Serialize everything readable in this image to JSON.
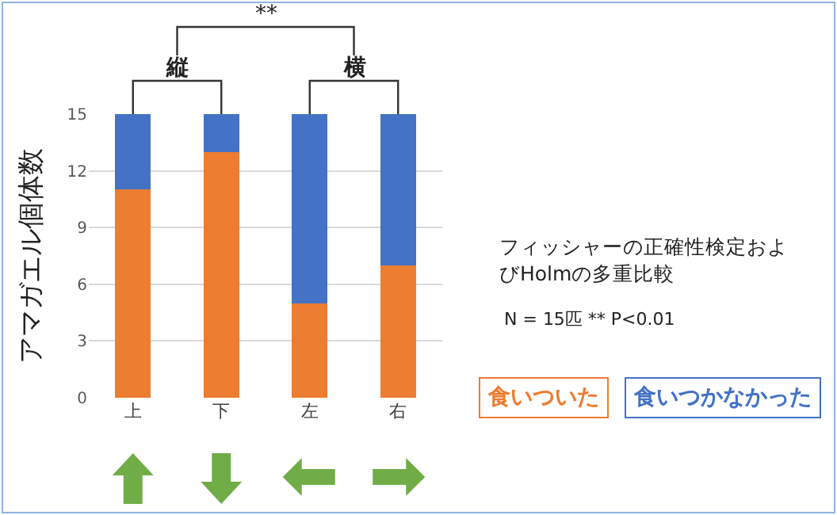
{
  "chart_data": {
    "type": "bar",
    "stacked": true,
    "categories": [
      "上",
      "下",
      "左",
      "右"
    ],
    "series": [
      {
        "name": "食いついた",
        "color": "#ed7d31",
        "values": [
          11,
          13,
          5,
          7
        ]
      },
      {
        "name": "食いつかなかった",
        "color": "#4472c4",
        "values": [
          4,
          2,
          10,
          8
        ]
      }
    ],
    "ylabel": "アマガエル個体数",
    "ylim": [
      0,
      15
    ],
    "yticks": [
      0,
      3,
      6,
      9,
      12,
      15
    ],
    "grid": "y",
    "legend": "bottom right",
    "annotations": [
      "**",
      "縦",
      "横",
      "フィッシャーの正確性検定およびHolmの多重比較",
      "N = 15匹 ** P<0.01"
    ]
  }
}
